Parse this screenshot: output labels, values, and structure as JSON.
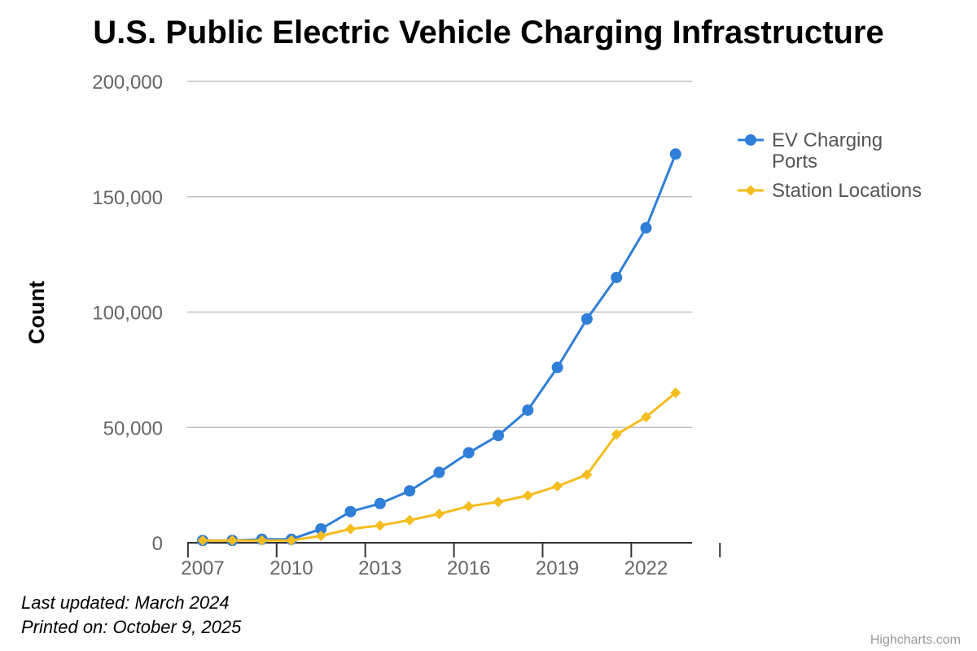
{
  "chart_data": {
    "type": "line",
    "title": "U.S. Public Electric Vehicle Charging Infrastructure",
    "xlabel": "",
    "ylabel": "Count",
    "x": [
      2007,
      2008,
      2009,
      2010,
      2011,
      2012,
      2013,
      2014,
      2015,
      2016,
      2017,
      2018,
      2019,
      2020,
      2021,
      2022,
      2023
    ],
    "x_tick_labels": [
      "2007",
      "2010",
      "2013",
      "2016",
      "2019",
      "2022"
    ],
    "ylim": [
      0,
      200000
    ],
    "y_ticks": [
      0,
      50000,
      100000,
      150000,
      200000
    ],
    "y_tick_labels": [
      "0",
      "50,000",
      "100,000",
      "150,000",
      "200,000"
    ],
    "grid": true,
    "legend_position": "right",
    "series": [
      {
        "name": "EV Charging Ports",
        "legend_lines": [
          "EV Charging",
          "Ports"
        ],
        "color": "#2f7ed8",
        "marker": "circle",
        "values": [
          1000,
          1000,
          1500,
          1500,
          6000,
          13500,
          17000,
          22500,
          30500,
          39000,
          46500,
          57500,
          76000,
          97000,
          115000,
          136500,
          168500
        ]
      },
      {
        "name": "Station Locations",
        "legend_lines": [
          "Station Locations"
        ],
        "color": "#f5bc1d",
        "marker": "diamond",
        "values": [
          1000,
          1000,
          1000,
          1000,
          3000,
          6000,
          7500,
          9800,
          12500,
          15800,
          17700,
          20500,
          24500,
          29500,
          47000,
          54500,
          65000
        ]
      }
    ]
  },
  "notes": {
    "updated": "Last updated: March 2024",
    "printed": "Printed on: October 9, 2025"
  },
  "credits": "Highcharts.com"
}
